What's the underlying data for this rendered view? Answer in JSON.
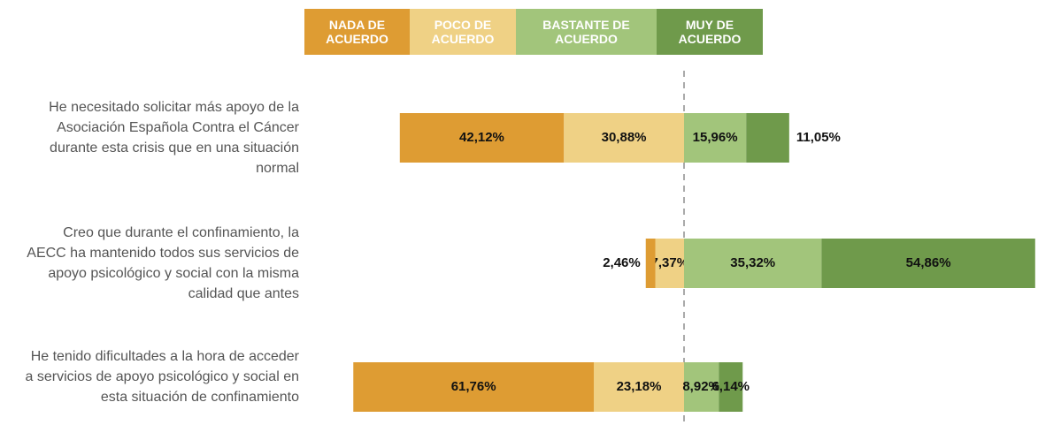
{
  "chart_data": {
    "type": "diverging-bar",
    "categories": [
      "He necesitado solicitar más apoyo de la Asociación Española Contra el Cáncer durante esta crisis que en una situación normal",
      "Creo que durante el confinamiento, la AECC ha mantenido todos sus servicios de apoyo psicológico y social con la misma calidad que antes",
      "He tenido dificultades a la hora de acceder a servicios de apoyo psicológico y social en esta situación de confinamiento"
    ],
    "series": [
      {
        "name": "NADA DE ACUERDO",
        "color": "#de9c33",
        "values": [
          42.12,
          2.46,
          61.76
        ],
        "value_labels": [
          "42,12%",
          "2,46%",
          "61,76%"
        ]
      },
      {
        "name": "POCO DE ACUERDO",
        "color": "#efd185",
        "values": [
          30.88,
          7.37,
          23.18
        ],
        "value_labels": [
          "30,88%",
          "7,37%",
          "23,18%"
        ]
      },
      {
        "name": "BASTANTE DE ACUERDO",
        "color": "#a2c57b",
        "values": [
          15.96,
          35.32,
          8.92
        ],
        "value_labels": [
          "15,96%",
          "35,32%",
          "8,92%"
        ]
      },
      {
        "name": "MUY DE ACUERDO",
        "color": "#6f9a4b",
        "values": [
          11.05,
          54.86,
          6.14
        ],
        "value_labels": [
          "11,05%",
          "54,86%",
          "6,14%"
        ]
      }
    ]
  }
}
